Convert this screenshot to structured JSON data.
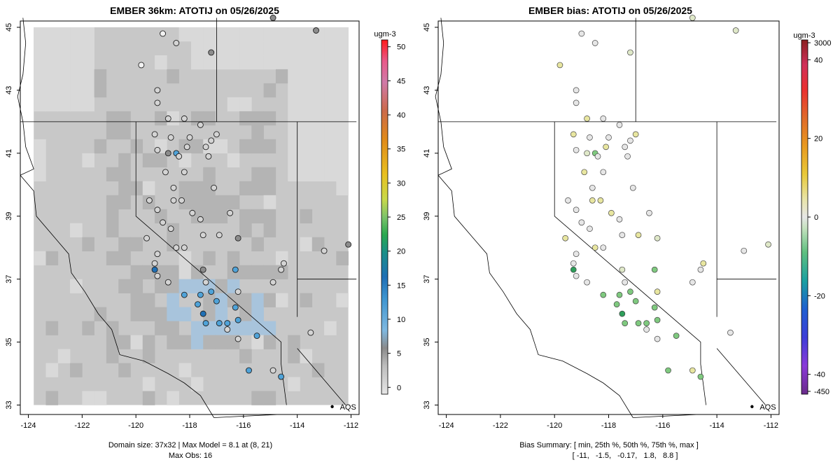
{
  "panels": {
    "left": {
      "title": "EMBER 36km: ATOTIJ on 05/26/2025",
      "caption_line1": "Domain size: 37x32 | Max Model = 8.1 at (8, 21)",
      "caption_line2": "Max Obs: 16"
    },
    "right": {
      "title": "EMBER bias: ATOTIJ on 05/26/2025",
      "caption_line1": "Bias Summary: [ min, 25th %, 50th %, 75th %, max ]",
      "caption_line2": "[ -11,   -1.5,   -0.17,   1.8,   8.8 ]"
    }
  },
  "colors": {
    "panel_border": "#000000",
    "grid_light": "#d9d9d9",
    "grid_mid": "#c8c8c8",
    "grid_dark": "#b4b4b4",
    "obs_blue": "#4fa3d9",
    "obs_dark_blue": "#1f6fb5",
    "bias_green": "#7fc97f",
    "bias_yellow": "#e8e6a0",
    "point_white": "#f2f2f2"
  },
  "chart_data": [
    {
      "type": "heatmap",
      "title": "EMBER 36km: ATOTIJ on 05/26/2025",
      "x_ticks": [
        "-124",
        "-122",
        "-120",
        "-118",
        "-116",
        "-114",
        "-112"
      ],
      "x_tick_values": [
        -124,
        -122,
        -120,
        -118,
        -116,
        -114,
        -112
      ],
      "y_ticks": [
        "33",
        "35",
        "37",
        "39",
        "41",
        "43",
        "45"
      ],
      "y_tick_values": [
        33,
        35,
        37,
        39,
        41,
        43,
        45
      ],
      "xlim": [
        -124.3,
        -111.7
      ],
      "ylim": [
        32.7,
        45.2
      ],
      "colorbar": {
        "unit": "ugm-3",
        "ticks": [
          "0",
          "5",
          "10",
          "15",
          "20",
          "25",
          "30",
          "35",
          "40",
          "45",
          "50"
        ],
        "tick_values": [
          0,
          5,
          10,
          15,
          20,
          25,
          30,
          35,
          40,
          45,
          50
        ],
        "range": [
          -1,
          51
        ]
      },
      "site_label": "AQS",
      "site_lon": -112.7,
      "site_lat": 32.95,
      "observations": [
        {
          "lon": -119.8,
          "lat": 43.8,
          "v": 1
        },
        {
          "lon": -119.0,
          "lat": 44.8,
          "v": 1
        },
        {
          "lon": -118.5,
          "lat": 44.5,
          "v": 4
        },
        {
          "lon": -117.2,
          "lat": 44.2,
          "v": 6
        },
        {
          "lon": -119.2,
          "lat": 43.0,
          "v": 3
        },
        {
          "lon": -119.2,
          "lat": 42.6,
          "v": 3
        },
        {
          "lon": -118.8,
          "lat": 42.1,
          "v": 3
        },
        {
          "lon": -118.2,
          "lat": 42.1,
          "v": 3
        },
        {
          "lon": -117.6,
          "lat": 41.9,
          "v": 3
        },
        {
          "lon": -119.3,
          "lat": 41.6,
          "v": 2
        },
        {
          "lon": -118.7,
          "lat": 41.5,
          "v": 2
        },
        {
          "lon": -118.0,
          "lat": 41.5,
          "v": 3
        },
        {
          "lon": -117.0,
          "lat": 41.6,
          "v": 3
        },
        {
          "lon": -117.2,
          "lat": 41.4,
          "v": 3
        },
        {
          "lon": -117.4,
          "lat": 41.2,
          "v": 3
        },
        {
          "lon": -118.1,
          "lat": 41.2,
          "v": 3
        },
        {
          "lon": -119.2,
          "lat": 41.1,
          "v": 3
        },
        {
          "lon": -118.8,
          "lat": 41.0,
          "v": 5
        },
        {
          "lon": -118.5,
          "lat": 41.0,
          "v": 12
        },
        {
          "lon": -118.4,
          "lat": 40.9,
          "v": 3
        },
        {
          "lon": -117.3,
          "lat": 40.9,
          "v": 3
        },
        {
          "lon": -118.9,
          "lat": 40.4,
          "v": 2
        },
        {
          "lon": -118.2,
          "lat": 40.4,
          "v": 3
        },
        {
          "lon": -118.6,
          "lat": 39.9,
          "v": 3
        },
        {
          "lon": -118.3,
          "lat": 39.5,
          "v": 3
        },
        {
          "lon": -117.1,
          "lat": 39.9,
          "v": 3
        },
        {
          "lon": -119.5,
          "lat": 39.5,
          "v": 3
        },
        {
          "lon": -118.6,
          "lat": 39.5,
          "v": 3
        },
        {
          "lon": -119.2,
          "lat": 39.2,
          "v": 3
        },
        {
          "lon": -119.0,
          "lat": 38.8,
          "v": 2
        },
        {
          "lon": -117.9,
          "lat": 39.1,
          "v": 3
        },
        {
          "lon": -117.6,
          "lat": 38.9,
          "v": 3
        },
        {
          "lon": -116.5,
          "lat": 39.1,
          "v": 3
        },
        {
          "lon": -116.9,
          "lat": 38.4,
          "v": 3
        },
        {
          "lon": -116.2,
          "lat": 38.3,
          "v": 5
        },
        {
          "lon": -118.7,
          "lat": 38.6,
          "v": 3
        },
        {
          "lon": -118.5,
          "lat": 38.0,
          "v": 3
        },
        {
          "lon": -118.2,
          "lat": 38.0,
          "v": 3
        },
        {
          "lon": -117.5,
          "lat": 38.4,
          "v": 3
        },
        {
          "lon": -119.6,
          "lat": 38.3,
          "v": 3
        },
        {
          "lon": -119.2,
          "lat": 37.8,
          "v": 2
        },
        {
          "lon": -119.3,
          "lat": 37.5,
          "v": 3
        },
        {
          "lon": -119.3,
          "lat": 37.3,
          "v": 16
        },
        {
          "lon": -119.2,
          "lat": 37.1,
          "v": 2
        },
        {
          "lon": -118.8,
          "lat": 36.9,
          "v": 3
        },
        {
          "lon": -117.5,
          "lat": 37.3,
          "v": 8
        },
        {
          "lon": -117.4,
          "lat": 36.9,
          "v": 3
        },
        {
          "lon": -116.3,
          "lat": 37.3,
          "v": 12
        },
        {
          "lon": -116.2,
          "lat": 36.6,
          "v": 3
        },
        {
          "lon": -118.2,
          "lat": 36.5,
          "v": 12
        },
        {
          "lon": -117.6,
          "lat": 36.5,
          "v": 12
        },
        {
          "lon": -117.2,
          "lat": 36.6,
          "v": 12
        },
        {
          "lon": -117.7,
          "lat": 36.2,
          "v": 12
        },
        {
          "lon": -117.0,
          "lat": 36.3,
          "v": 12
        },
        {
          "lon": -117.5,
          "lat": 35.9,
          "v": 14
        },
        {
          "lon": -117.4,
          "lat": 35.6,
          "v": 12
        },
        {
          "lon": -116.9,
          "lat": 35.6,
          "v": 12
        },
        {
          "lon": -116.6,
          "lat": 35.6,
          "v": 12
        },
        {
          "lon": -116.2,
          "lat": 35.7,
          "v": 12
        },
        {
          "lon": -116.6,
          "lat": 35.4,
          "v": 3
        },
        {
          "lon": -115.5,
          "lat": 35.2,
          "v": 13
        },
        {
          "lon": -116.2,
          "lat": 35.1,
          "v": 3
        },
        {
          "lon": -116.3,
          "lat": 36.1,
          "v": 12
        },
        {
          "lon": -114.9,
          "lat": 34.1,
          "v": 3
        },
        {
          "lon": -115.8,
          "lat": 34.1,
          "v": 12
        },
        {
          "lon": -114.6,
          "lat": 33.9,
          "v": 12
        },
        {
          "lon": -114.5,
          "lat": 37.5,
          "v": 3
        },
        {
          "lon": -114.6,
          "lat": 37.3,
          "v": 3
        },
        {
          "lon": -114.9,
          "lat": 36.9,
          "v": 3
        },
        {
          "lon": -113.3,
          "lat": 44.9,
          "v": 5
        },
        {
          "lon": -113.5,
          "lat": 35.3,
          "v": 3
        },
        {
          "lon": -113.0,
          "lat": 37.9,
          "v": 3
        },
        {
          "lon": -112.1,
          "lat": 38.1,
          "v": 5
        },
        {
          "lon": -114.9,
          "lat": 45.3,
          "v": 5
        }
      ]
    },
    {
      "type": "scatter",
      "title": "EMBER bias: ATOTIJ on 05/26/2025",
      "x_ticks": [
        "-124",
        "-122",
        "-120",
        "-118",
        "-116",
        "-114",
        "-112"
      ],
      "x_tick_values": [
        -124,
        -122,
        -120,
        -118,
        -116,
        -114,
        -112
      ],
      "y_ticks": [
        "33",
        "35",
        "37",
        "39",
        "41",
        "43",
        "45"
      ],
      "y_tick_values": [
        33,
        35,
        37,
        39,
        41,
        43,
        45
      ],
      "xlim": [
        -124.3,
        -111.7
      ],
      "ylim": [
        32.7,
        45.2
      ],
      "colorbar": {
        "unit": "ugm-3",
        "ticks": [
          "3000",
          "40",
          "20",
          "0",
          "-20",
          "-40",
          "-450"
        ],
        "tick_values": [
          3000,
          40,
          20,
          0,
          -20,
          -40,
          -450
        ]
      },
      "site_label": "AQS",
      "site_lon": -112.7,
      "site_lat": 32.95,
      "bias_summary": {
        "min": -11,
        "p25": -1.5,
        "p50": -0.17,
        "p75": 1.8,
        "max": 8.8
      }
    }
  ]
}
